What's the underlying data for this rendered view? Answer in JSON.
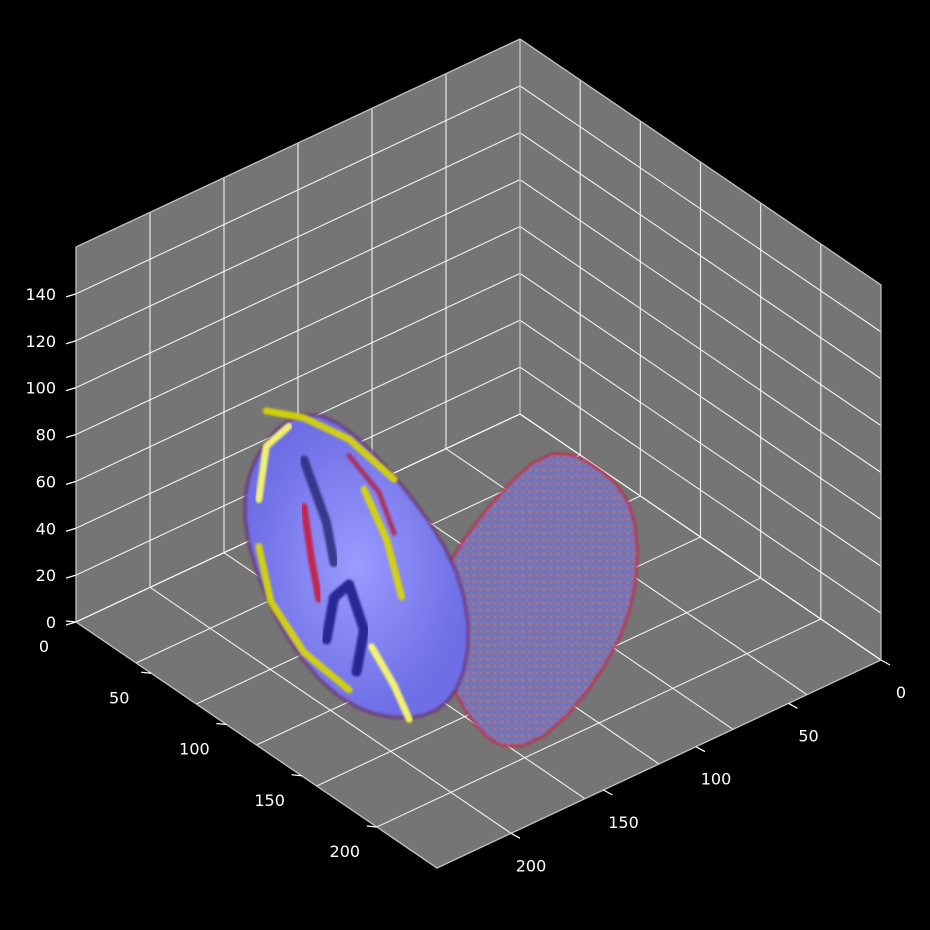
{
  "chart_data": {
    "type": "volume-render-3d",
    "title": "",
    "xlabel": "",
    "ylabel": "",
    "zlabel": "",
    "grid": true,
    "colors": {
      "figure_background": "#000000",
      "pane": "#757575",
      "grid": "#ffffff",
      "tick_text": "#ffffff",
      "volume_colormap": [
        "#1a1a8c",
        "#8080ff",
        "#d9d900",
        "#ffff66",
        "#c81e3c"
      ]
    },
    "axes": {
      "x": {
        "ticks": [
          0,
          50,
          100,
          150,
          200
        ],
        "range": [
          0,
          240
        ]
      },
      "y": {
        "ticks": [
          0,
          50,
          100,
          150,
          200
        ],
        "range": [
          0,
          240
        ]
      },
      "z": {
        "ticks": [
          0,
          20,
          40,
          60,
          80,
          100,
          120,
          140
        ],
        "range": [
          0,
          160
        ]
      }
    },
    "volume": {
      "description_shape": "brain MRI voxel render, cut block",
      "x_extent": [
        90,
        200
      ],
      "y_extent": [
        50,
        220
      ],
      "z_extent": [
        0,
        115
      ]
    }
  }
}
